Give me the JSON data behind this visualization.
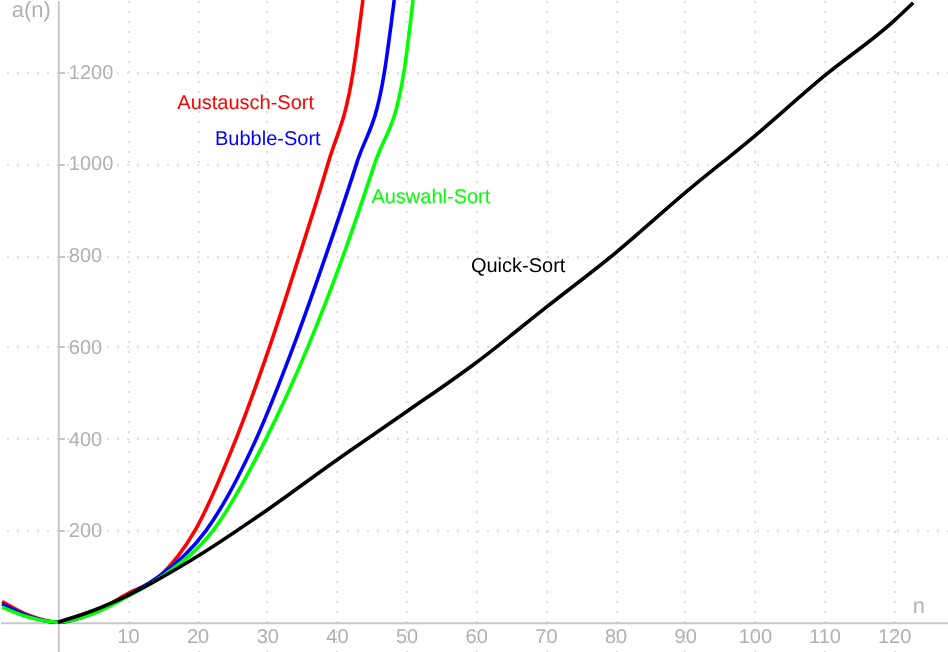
{
  "chart_data": {
    "type": "line",
    "xlabel": "n",
    "ylabel": "a(n)",
    "xlim": [
      -8.3,
      127.8
    ],
    "ylim": [
      -65,
      1356
    ],
    "xticks": [
      10,
      20,
      30,
      40,
      50,
      60,
      70,
      80,
      90,
      100,
      110,
      120
    ],
    "yticks": [
      200,
      400,
      600,
      800,
      1000,
      1200
    ],
    "grid": true,
    "marker": "none",
    "line_style": "solid",
    "series": [
      {
        "name": "Austausch-Sort",
        "color": "#ff0000",
        "x": [
          -8,
          -4,
          0,
          5,
          10,
          14.6,
          19.7,
          25.6,
          30.4,
          34.7,
          38.8,
          42.4,
          43.8
        ],
        "values": [
          45,
          14,
          0,
          20,
          62,
          100,
          200,
          400,
          600,
          800,
          1000,
          1200,
          1356
        ]
      },
      {
        "name": "Bubble-Sort",
        "color": "#0000ff",
        "x": [
          -8,
          -4,
          0,
          5,
          10,
          15,
          21.3,
          28.5,
          33.8,
          38.5,
          42.9,
          46.9,
          48.3
        ],
        "values": [
          40,
          12,
          0,
          19,
          58,
          105,
          200,
          400,
          600,
          800,
          1000,
          1200,
          1356
        ]
      },
      {
        "name": "Auswahl-Sort",
        "color": "#00ff00",
        "x": [
          -8,
          -4,
          0,
          5,
          10,
          15,
          22.3,
          29.9,
          35.9,
          41,
          45.5,
          49.7,
          51
        ],
        "values": [
          33,
          10,
          0,
          18,
          56,
          100,
          200,
          400,
          600,
          800,
          1000,
          1200,
          1356
        ]
      },
      {
        "name": "Quick-Sort",
        "color": "#000000",
        "x": [
          0,
          5,
          10,
          20,
          30,
          40,
          50,
          60,
          70,
          80,
          90,
          100,
          110,
          120,
          122.8
        ],
        "values": [
          0,
          25,
          58,
          143,
          244,
          353,
          458,
          565,
          685,
          804,
          935,
          1059,
          1190,
          1310,
          1350
        ]
      }
    ]
  }
}
